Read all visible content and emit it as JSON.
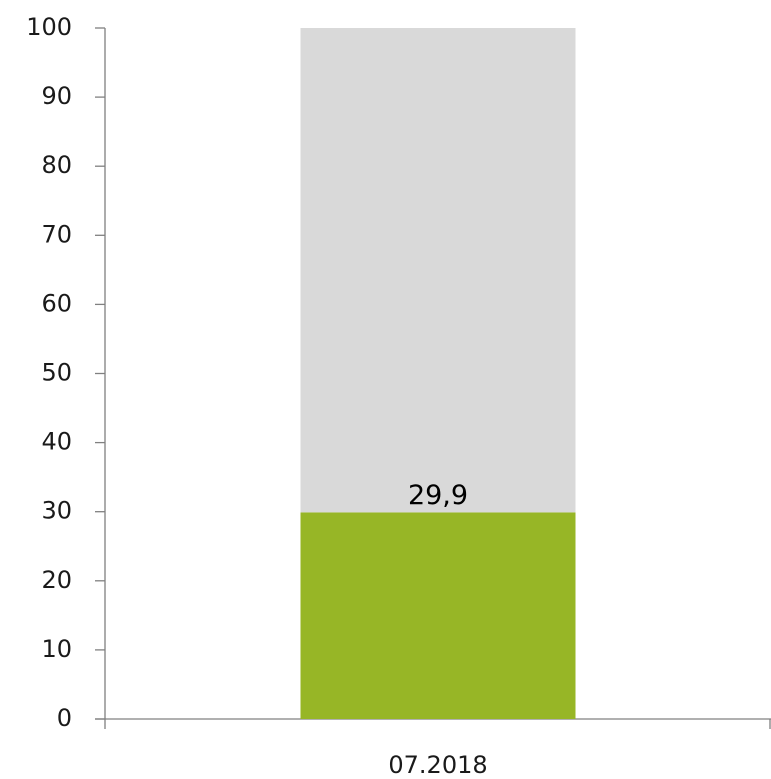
{
  "chart_data": {
    "type": "bar",
    "stacked": true,
    "categories": [
      "07.2018"
    ],
    "series": [
      {
        "color": "#97b626",
        "values": [
          29.9
        ],
        "value_labels": [
          "29,9"
        ]
      },
      {
        "color": "#d9d9d9",
        "values": [
          70.1
        ]
      }
    ],
    "ylim": [
      0,
      100
    ],
    "yticks": [
      0,
      10,
      20,
      30,
      40,
      50,
      60,
      70,
      80,
      90,
      100
    ],
    "grid": false
  }
}
